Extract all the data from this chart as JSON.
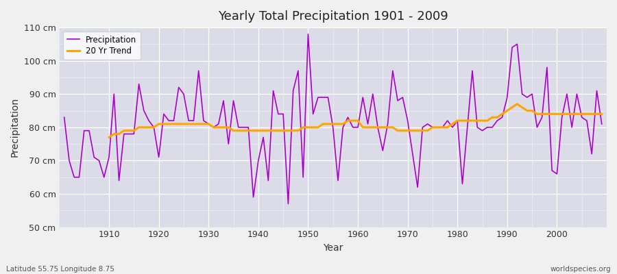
{
  "title": "Yearly Total Precipitation 1901 - 2009",
  "xlabel": "Year",
  "ylabel": "Precipitation",
  "lat_lon_label": "Latitude 55.75 Longitude 8.75",
  "watermark": "worldspecies.org",
  "ylim": [
    50,
    110
  ],
  "ytick_labels": [
    "50 cm",
    "60 cm",
    "70 cm",
    "80 cm",
    "90 cm",
    "100 cm",
    "110 cm"
  ],
  "ytick_values": [
    50,
    60,
    70,
    80,
    90,
    100,
    110
  ],
  "precipitation_color": "#AA00CC",
  "trend_color": "#FFA500",
  "bg_color": "#DCDCE8",
  "fig_bg_color": "#F0F0F0",
  "years": [
    1901,
    1902,
    1903,
    1904,
    1905,
    1906,
    1907,
    1908,
    1909,
    1910,
    1911,
    1912,
    1913,
    1914,
    1915,
    1916,
    1917,
    1918,
    1919,
    1920,
    1921,
    1922,
    1923,
    1924,
    1925,
    1926,
    1927,
    1928,
    1929,
    1930,
    1931,
    1932,
    1933,
    1934,
    1935,
    1936,
    1937,
    1938,
    1939,
    1940,
    1941,
    1942,
    1943,
    1944,
    1945,
    1946,
    1947,
    1948,
    1949,
    1950,
    1951,
    1952,
    1953,
    1954,
    1955,
    1956,
    1957,
    1958,
    1959,
    1960,
    1961,
    1962,
    1963,
    1964,
    1965,
    1966,
    1967,
    1968,
    1969,
    1970,
    1971,
    1972,
    1973,
    1974,
    1975,
    1976,
    1977,
    1978,
    1979,
    1980,
    1981,
    1982,
    1983,
    1984,
    1985,
    1986,
    1987,
    1988,
    1989,
    1990,
    1991,
    1992,
    1993,
    1994,
    1995,
    1996,
    1997,
    1998,
    1999,
    2000,
    2001,
    2002,
    2003,
    2004,
    2005,
    2006,
    2007,
    2008,
    2009
  ],
  "precipitation": [
    83,
    70,
    65,
    65,
    79,
    79,
    71,
    70,
    65,
    71,
    90,
    64,
    78,
    78,
    78,
    93,
    85,
    82,
    80,
    71,
    84,
    82,
    82,
    92,
    90,
    82,
    82,
    97,
    82,
    81,
    80,
    81,
    88,
    75,
    88,
    80,
    80,
    80,
    59,
    70,
    77,
    64,
    91,
    84,
    84,
    57,
    91,
    97,
    65,
    108,
    84,
    89,
    89,
    89,
    80,
    64,
    80,
    83,
    80,
    80,
    89,
    81,
    90,
    80,
    73,
    81,
    97,
    88,
    89,
    82,
    72,
    62,
    80,
    81,
    80,
    80,
    80,
    82,
    80,
    82,
    63,
    80,
    97,
    80,
    79,
    80,
    80,
    82,
    83,
    89,
    104,
    105,
    90,
    89,
    90,
    80,
    83,
    98,
    67,
    66,
    83,
    90,
    80,
    90,
    83,
    82,
    72,
    91,
    81
  ],
  "trend": [
    null,
    null,
    null,
    null,
    null,
    null,
    null,
    null,
    null,
    77,
    78,
    78,
    79,
    79,
    79,
    80,
    80,
    80,
    80,
    81,
    81,
    81,
    81,
    81,
    81,
    81,
    81,
    81,
    81,
    81,
    80,
    80,
    80,
    80,
    79,
    79,
    79,
    79,
    79,
    79,
    79,
    79,
    79,
    79,
    79,
    79,
    79,
    79,
    80,
    80,
    80,
    80,
    81,
    81,
    81,
    81,
    81,
    82,
    82,
    82,
    80,
    80,
    80,
    80,
    80,
    80,
    80,
    79,
    79,
    79,
    79,
    79,
    79,
    79,
    80,
    80,
    80,
    80,
    81,
    82,
    82,
    82,
    82,
    82,
    82,
    82,
    83,
    83,
    84,
    85,
    86,
    87,
    86,
    85,
    85,
    84,
    84,
    84,
    84,
    84,
    84,
    84,
    84,
    84,
    84,
    84,
    84,
    84,
    84
  ],
  "xticks": [
    1910,
    1920,
    1930,
    1940,
    1950,
    1960,
    1970,
    1980,
    1990,
    2000
  ]
}
